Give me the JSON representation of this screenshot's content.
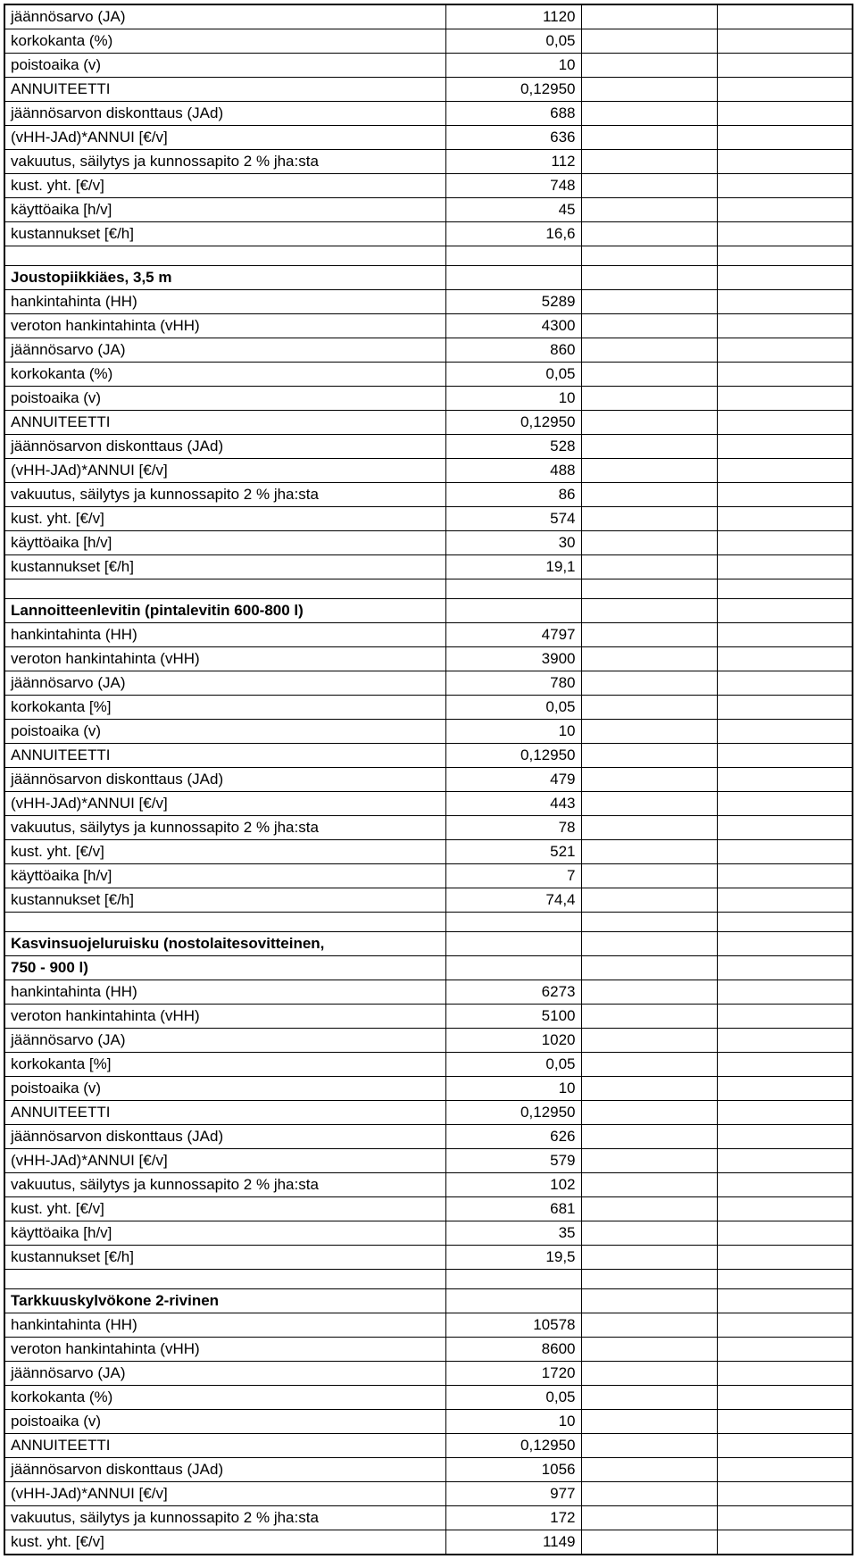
{
  "sections": [
    {
      "header": null,
      "rows": [
        {
          "label": "jäännösarvo (JA)",
          "value": "1120"
        },
        {
          "label": "korkokanta (%)",
          "value": "0,05"
        },
        {
          "label": "poistoaika (v)",
          "value": "10"
        },
        {
          "label": "ANNUITEETTI",
          "value": "0,12950"
        },
        {
          "label": "jäännösarvon diskonttaus (JAd)",
          "value": "688"
        },
        {
          "label": "(vHH-JAd)*ANNUI   [€/v]",
          "value": "636"
        },
        {
          "label": "vakuutus, säilytys ja kunnossapito 2 % jha:sta",
          "value": "112"
        },
        {
          "label": "kust. yht. [€/v]",
          "value": "748"
        },
        {
          "label": "käyttöaika [h/v]",
          "value": "45"
        },
        {
          "label": "kustannukset [€/h]",
          "value": "16,6"
        }
      ]
    },
    {
      "header": "Joustopiikkiäes, 3,5 m",
      "rows": [
        {
          "label": "hankintahinta (HH)",
          "value": "5289"
        },
        {
          "label": "veroton hankintahinta (vHH)",
          "value": "4300"
        },
        {
          "label": "jäännösarvo (JA)",
          "value": "860"
        },
        {
          "label": "korkokanta (%)",
          "value": "0,05"
        },
        {
          "label": "poistoaika (v)",
          "value": "10"
        },
        {
          "label": "ANNUITEETTI",
          "value": "0,12950"
        },
        {
          "label": "jäännösarvon diskonttaus (JAd)",
          "value": "528"
        },
        {
          "label": "(vHH-JAd)*ANNUI   [€/v]",
          "value": "488"
        },
        {
          "label": "vakuutus, säilytys ja kunnossapito 2 % jha:sta",
          "value": "86"
        },
        {
          "label": "kust. yht. [€/v]",
          "value": "574"
        },
        {
          "label": "käyttöaika [h/v]",
          "value": "30"
        },
        {
          "label": "kustannukset [€/h]",
          "value": "19,1"
        }
      ]
    },
    {
      "header": "Lannoitteenlevitin (pintalevitin 600-800 l)",
      "rows": [
        {
          "label": "hankintahinta (HH)",
          "value": "4797"
        },
        {
          "label": "veroton hankintahinta (vHH)",
          "value": "3900"
        },
        {
          "label": "jäännösarvo (JA)",
          "value": "780"
        },
        {
          "label": "korkokanta [%]",
          "value": "0,05"
        },
        {
          "label": "poistoaika (v)",
          "value": "10"
        },
        {
          "label": "ANNUITEETTI",
          "value": "0,12950"
        },
        {
          "label": "jäännösarvon diskonttaus (JAd)",
          "value": "479"
        },
        {
          "label": "(vHH-JAd)*ANNUI   [€/v]",
          "value": "443"
        },
        {
          "label": "vakuutus, säilytys ja kunnossapito 2 % jha:sta",
          "value": "78"
        },
        {
          "label": "kust. yht. [€/v]",
          "value": "521"
        },
        {
          "label": "käyttöaika [h/v]",
          "value": "7"
        },
        {
          "label": "kustannukset [€/h]",
          "value": "74,4"
        }
      ]
    },
    {
      "header": "Kasvinsuojeluruisku (nostolaitesovitteinen,",
      "header2": "750 - 900 l)",
      "rows": [
        {
          "label": "hankintahinta (HH)",
          "value": "6273"
        },
        {
          "label": "veroton hankintahinta (vHH)",
          "value": "5100"
        },
        {
          "label": "jäännösarvo (JA)",
          "value": "1020"
        },
        {
          "label": "korkokanta [%]",
          "value": "0,05"
        },
        {
          "label": "poistoaika (v)",
          "value": "10"
        },
        {
          "label": "ANNUITEETTI",
          "value": "0,12950"
        },
        {
          "label": "jäännösarvon diskonttaus (JAd)",
          "value": "626"
        },
        {
          "label": "(vHH-JAd)*ANNUI   [€/v]",
          "value": "579"
        },
        {
          "label": "vakuutus, säilytys ja kunnossapito 2 % jha:sta",
          "value": "102"
        },
        {
          "label": "kust. yht. [€/v]",
          "value": "681"
        },
        {
          "label": "käyttöaika [h/v]",
          "value": "35"
        },
        {
          "label": "kustannukset [€/h]",
          "value": "19,5"
        }
      ]
    },
    {
      "header": "Tarkkuuskylvökone 2-rivinen",
      "rows": [
        {
          "label": "hankintahinta (HH)",
          "value": "10578"
        },
        {
          "label": "veroton hankintahinta (vHH)",
          "value": "8600"
        },
        {
          "label": "jäännösarvo (JA)",
          "value": "1720"
        },
        {
          "label": "korkokanta (%)",
          "value": "0,05"
        },
        {
          "label": "poistoaika (v)",
          "value": "10"
        },
        {
          "label": "ANNUITEETTI",
          "value": "0,12950"
        },
        {
          "label": "jäännösarvon diskonttaus (JAd)",
          "value": "1056"
        },
        {
          "label": "(vHH-JAd)*ANNUI   [€/v]",
          "value": "977"
        },
        {
          "label": "vakuutus, säilytys ja kunnossapito 2 % jha:sta",
          "value": "172"
        },
        {
          "label": "kust. yht. [€/v]",
          "value": "1149"
        }
      ]
    }
  ]
}
